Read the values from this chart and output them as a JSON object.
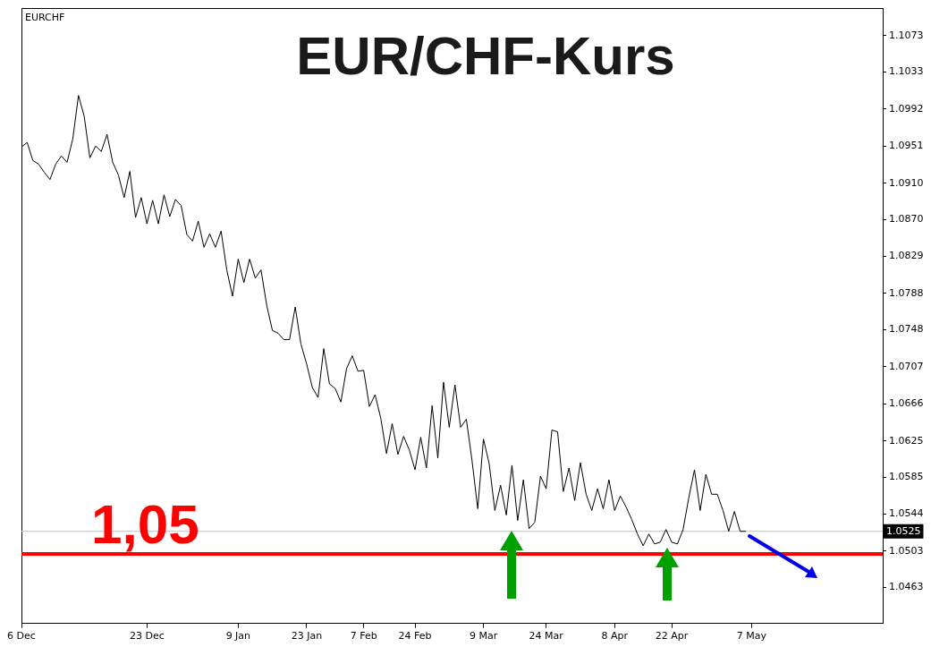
{
  "chart_data": {
    "type": "line",
    "title": "EUR/CHF-Kurs",
    "annotations": [
      "EURCHF"
    ],
    "categories": [
      "6 Dec",
      null,
      null,
      null,
      null,
      null,
      null,
      null,
      null,
      null,
      null,
      null,
      null,
      null,
      null,
      null,
      null,
      null,
      null,
      null,
      null,
      null,
      "23 Dec",
      null,
      null,
      null,
      null,
      null,
      null,
      null,
      null,
      null,
      null,
      null,
      null,
      null,
      null,
      null,
      "9 Jan",
      null,
      null,
      null,
      null,
      null,
      null,
      null,
      null,
      null,
      null,
      null,
      "23 Jan",
      null,
      null,
      null,
      null,
      null,
      null,
      null,
      null,
      null,
      "7 Feb",
      null,
      null,
      null,
      null,
      null,
      null,
      null,
      null,
      "24 Feb",
      null,
      null,
      null,
      null,
      null,
      null,
      null,
      null,
      null,
      null,
      null,
      "9 Mar",
      null,
      null,
      null,
      null,
      null,
      null,
      null,
      null,
      null,
      null,
      "24 Mar",
      null,
      null,
      null,
      null,
      null,
      null,
      null,
      null,
      null,
      null,
      null,
      "8 Apr",
      null,
      null,
      null,
      null,
      null,
      null,
      null,
      null,
      null,
      "22 Apr",
      null,
      null,
      null,
      null,
      null,
      null,
      null,
      null,
      null,
      null,
      null,
      null,
      null,
      "7 May",
      null,
      null,
      null,
      null,
      null,
      null,
      null,
      null,
      null,
      null,
      null,
      null,
      null,
      null,
      null,
      null,
      null,
      null,
      null,
      null,
      null,
      null,
      null
    ],
    "series": [
      {
        "color": "#000000",
        "values": [
          1.095,
          1.0955,
          1.0935,
          1.0931,
          1.0922,
          1.0914,
          1.0931,
          1.094,
          1.0933,
          1.0959,
          1.1007,
          1.0984,
          1.0938,
          1.0951,
          1.0945,
          1.0964,
          1.0933,
          1.0919,
          1.0894,
          1.0923,
          1.0872,
          1.0894,
          1.0865,
          1.0891,
          1.0865,
          1.0897,
          1.0873,
          1.0892,
          1.0885,
          1.0853,
          1.0846,
          1.0868,
          1.0839,
          1.0854,
          1.0839,
          1.0857,
          1.0814,
          1.0785,
          1.0826,
          1.08,
          1.0826,
          1.0805,
          1.0814,
          1.0775,
          1.0747,
          1.0744,
          1.0737,
          1.0737,
          1.0773,
          1.0732,
          1.071,
          1.0684,
          1.0673,
          1.0727,
          1.0688,
          1.0683,
          1.0668,
          1.0705,
          1.0719,
          1.0702,
          1.0703,
          1.0663,
          1.0676,
          1.065,
          1.0611,
          1.0644,
          1.061,
          1.063,
          1.0615,
          1.0593,
          1.0629,
          1.0595,
          1.0664,
          1.0606,
          1.069,
          1.064,
          1.0687,
          1.064,
          1.0649,
          1.0603,
          1.055,
          1.0627,
          1.06,
          1.0548,
          1.0576,
          1.0543,
          1.0598,
          1.0537,
          1.0582,
          1.0528,
          1.0535,
          1.0586,
          1.0572,
          1.0637,
          1.0635,
          1.0569,
          1.0595,
          1.0559,
          1.0601,
          1.0566,
          1.0548,
          1.0572,
          1.055,
          1.0582,
          1.0548,
          1.0564,
          1.0552,
          1.0538,
          1.0522,
          1.0509,
          1.0522,
          1.0511,
          1.0513,
          1.0527,
          1.0513,
          1.0511,
          1.0527,
          1.0562,
          1.0593,
          1.0548,
          1.0588,
          1.0566,
          1.0566,
          1.0548,
          1.0525,
          1.0547,
          1.0525,
          1.0525,
          null,
          null,
          null,
          null,
          null,
          null,
          null,
          null,
          null,
          null,
          null,
          null,
          null,
          null,
          null,
          null,
          null,
          null,
          null,
          null,
          null,
          null,
          null,
          null
        ]
      }
    ],
    "ylim": [
      1.0423,
      1.1103
    ],
    "yticks": [
      1.0463,
      1.0503,
      1.0544,
      1.0585,
      1.0625,
      1.0666,
      1.0707,
      1.0748,
      1.0788,
      1.0829,
      {
        "value": 1.087,
        "label": "1.0870"
      },
      {
        "value": 1.091,
        "label": "1.0910"
      },
      1.0951,
      1.0992,
      1.1033,
      1.1073
    ],
    "ref_lines": [
      {
        "axis": "y",
        "value": 1.05,
        "label": "1,05",
        "color": "#ff0000"
      },
      {
        "axis": "y",
        "value": 1.0525,
        "label": "1.0525",
        "color": "#c0c0c0"
      }
    ],
    "grid": false,
    "legend": false,
    "marker": "none",
    "line_style": "solid"
  }
}
